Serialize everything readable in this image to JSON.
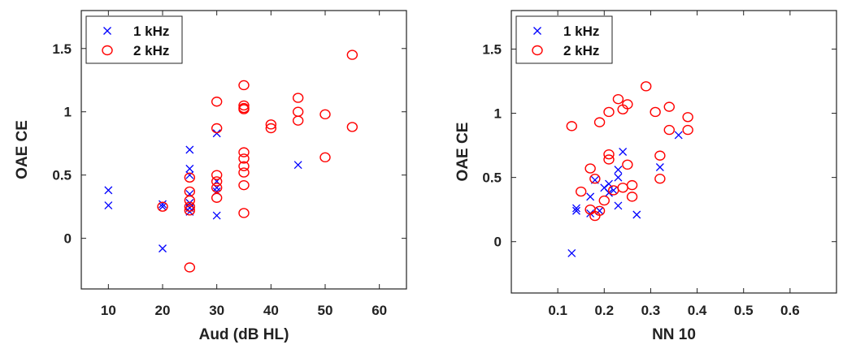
{
  "chart_data": [
    {
      "type": "scatter",
      "xlabel": "Aud (dB HL)",
      "ylabel": "OAE CE",
      "xlim": [
        5,
        65
      ],
      "ylim": [
        -0.4,
        1.8
      ],
      "xticks": [
        "10",
        "20",
        "30",
        "40",
        "50",
        "60"
      ],
      "yticks": [
        "0",
        "0.5",
        "1",
        "1.5"
      ],
      "grid": false,
      "legend_position": "top-left",
      "series": [
        {
          "name": "1 kHz",
          "marker": "x",
          "color": "#0000ff",
          "points": [
            [
              10,
              0.38
            ],
            [
              10,
              0.26
            ],
            [
              20,
              0.27
            ],
            [
              20,
              0.25
            ],
            [
              20,
              -0.08
            ],
            [
              25,
              0.7
            ],
            [
              25,
              0.55
            ],
            [
              25,
              0.5
            ],
            [
              25,
              0.35
            ],
            [
              25,
              0.28
            ],
            [
              25,
              0.24
            ],
            [
              25,
              0.21
            ],
            [
              30,
              0.83
            ],
            [
              30,
              0.45
            ],
            [
              30,
              0.4
            ],
            [
              30,
              0.37
            ],
            [
              30,
              0.18
            ],
            [
              45,
              0.58
            ]
          ]
        },
        {
          "name": "2 kHz",
          "marker": "o",
          "color": "#ff0000",
          "points": [
            [
              20,
              0.25
            ],
            [
              25,
              0.48
            ],
            [
              25,
              0.37
            ],
            [
              25,
              0.3
            ],
            [
              25,
              0.25
            ],
            [
              25,
              0.22
            ],
            [
              25,
              -0.23
            ],
            [
              30,
              1.08
            ],
            [
              30,
              0.87
            ],
            [
              30,
              0.5
            ],
            [
              30,
              0.45
            ],
            [
              30,
              0.4
            ],
            [
              30,
              0.32
            ],
            [
              35,
              1.21
            ],
            [
              35,
              1.05
            ],
            [
              35,
              1.03
            ],
            [
              35,
              1.02
            ],
            [
              35,
              0.68
            ],
            [
              35,
              0.63
            ],
            [
              35,
              0.57
            ],
            [
              35,
              0.52
            ],
            [
              35,
              0.42
            ],
            [
              35,
              0.2
            ],
            [
              40,
              0.9
            ],
            [
              40,
              0.87
            ],
            [
              45,
              1.11
            ],
            [
              45,
              1.0
            ],
            [
              45,
              0.93
            ],
            [
              50,
              0.98
            ],
            [
              50,
              0.64
            ],
            [
              55,
              1.45
            ],
            [
              55,
              0.88
            ]
          ]
        }
      ]
    },
    {
      "type": "scatter",
      "xlabel": "NN 10",
      "ylabel": "OAE CE",
      "xlim": [
        0,
        0.7
      ],
      "ylim": [
        -0.4,
        1.8
      ],
      "xticks": [
        "0.1",
        "0.2",
        "0.3",
        "0.4",
        "0.5",
        "0.6"
      ],
      "yticks": [
        "0",
        "0.5",
        "1",
        "1.5"
      ],
      "grid": false,
      "legend_position": "top-left",
      "series": [
        {
          "name": "1 kHz",
          "marker": "x",
          "color": "#0000ff",
          "points": [
            [
              0.13,
              -0.09
            ],
            [
              0.14,
              0.26
            ],
            [
              0.14,
              0.24
            ],
            [
              0.17,
              0.35
            ],
            [
              0.17,
              0.22
            ],
            [
              0.18,
              0.48
            ],
            [
              0.19,
              0.24
            ],
            [
              0.2,
              0.42
            ],
            [
              0.21,
              0.38
            ],
            [
              0.21,
              0.45
            ],
            [
              0.22,
              0.4
            ],
            [
              0.23,
              0.5
            ],
            [
              0.23,
              0.56
            ],
            [
              0.24,
              0.7
            ],
            [
              0.23,
              0.28
            ],
            [
              0.27,
              0.21
            ],
            [
              0.32,
              0.58
            ],
            [
              0.36,
              0.83
            ]
          ]
        },
        {
          "name": "2 kHz",
          "marker": "o",
          "color": "#ff0000",
          "points": [
            [
              0.13,
              0.9
            ],
            [
              0.15,
              0.39
            ],
            [
              0.17,
              0.57
            ],
            [
              0.17,
              0.25
            ],
            [
              0.18,
              0.2
            ],
            [
              0.19,
              0.24
            ],
            [
              0.18,
              0.49
            ],
            [
              0.19,
              0.93
            ],
            [
              0.2,
              0.32
            ],
            [
              0.21,
              0.64
            ],
            [
              0.21,
              0.68
            ],
            [
              0.21,
              1.01
            ],
            [
              0.22,
              0.4
            ],
            [
              0.23,
              1.11
            ],
            [
              0.24,
              1.03
            ],
            [
              0.24,
              0.42
            ],
            [
              0.25,
              0.6
            ],
            [
              0.25,
              1.07
            ],
            [
              0.26,
              0.44
            ],
            [
              0.26,
              0.35
            ],
            [
              0.29,
              1.21
            ],
            [
              0.31,
              1.01
            ],
            [
              0.32,
              0.67
            ],
            [
              0.32,
              0.49
            ],
            [
              0.34,
              1.05
            ],
            [
              0.34,
              0.87
            ],
            [
              0.38,
              0.97
            ],
            [
              0.38,
              0.87
            ]
          ]
        }
      ]
    }
  ]
}
